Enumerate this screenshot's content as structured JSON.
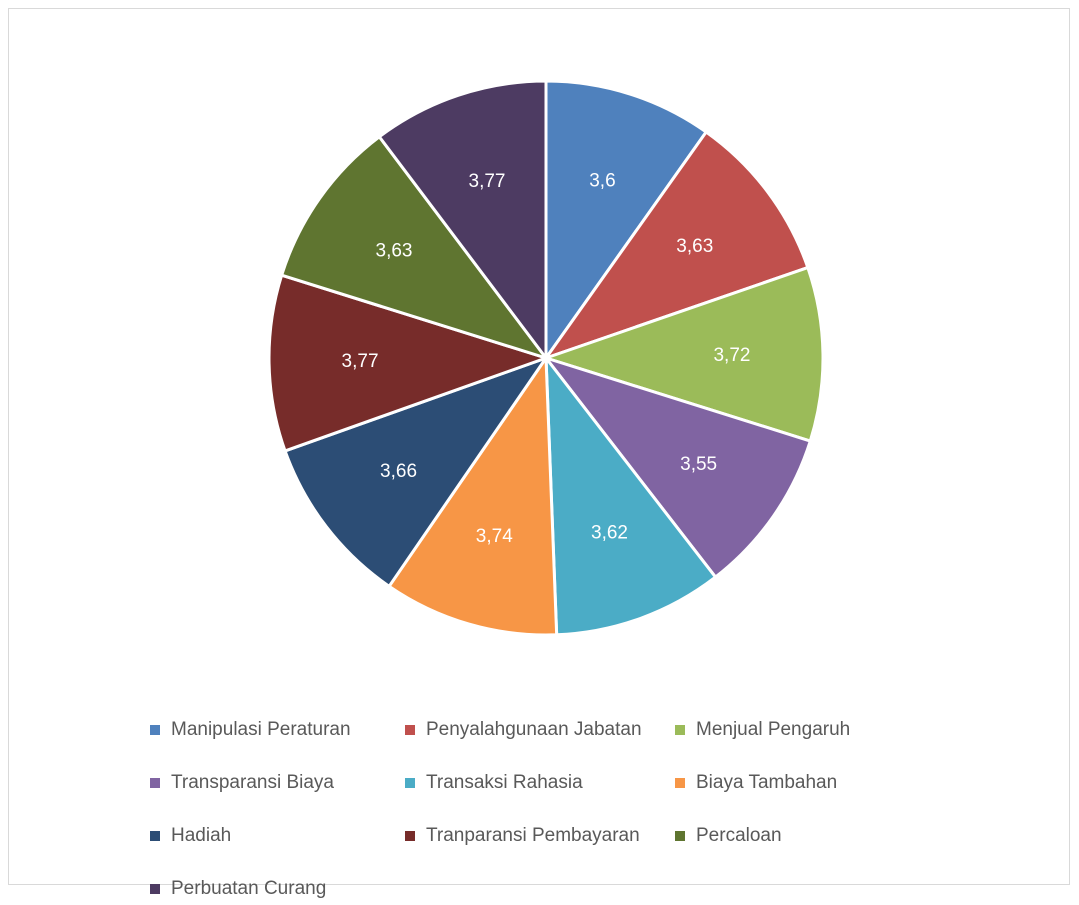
{
  "chart_data": {
    "type": "pie",
    "title": "",
    "start_angle_deg": 0,
    "direction": "clockwise",
    "legend_position": "bottom",
    "slices": [
      {
        "label": "Manipulasi Peraturan",
        "value": 3.6,
        "display": "3,6",
        "color": "#4F81BD"
      },
      {
        "label": "Penyalahgunaan Jabatan",
        "value": 3.63,
        "display": "3,63",
        "color": "#C0504D"
      },
      {
        "label": "Menjual Pengaruh",
        "value": 3.72,
        "display": "3,72",
        "color": "#9BBB59"
      },
      {
        "label": "Transparansi Biaya",
        "value": 3.55,
        "display": "3,55",
        "color": "#8064A2"
      },
      {
        "label": "Transaksi Rahasia",
        "value": 3.62,
        "display": "3,62",
        "color": "#4BACC6"
      },
      {
        "label": "Biaya Tambahan",
        "value": 3.74,
        "display": "3,74",
        "color": "#F79646"
      },
      {
        "label": "Hadiah",
        "value": 3.66,
        "display": "3,66",
        "color": "#2C4D75"
      },
      {
        "label": "Tranparansi Pembayaran",
        "value": 3.77,
        "display": "3,77",
        "color": "#772C2A"
      },
      {
        "label": "Percaloan",
        "value": 3.63,
        "display": "3,63",
        "color": "#5F7530"
      },
      {
        "label": "Perbuatan Curang",
        "value": 3.77,
        "display": "3,77",
        "color": "#4D3B62"
      }
    ]
  }
}
